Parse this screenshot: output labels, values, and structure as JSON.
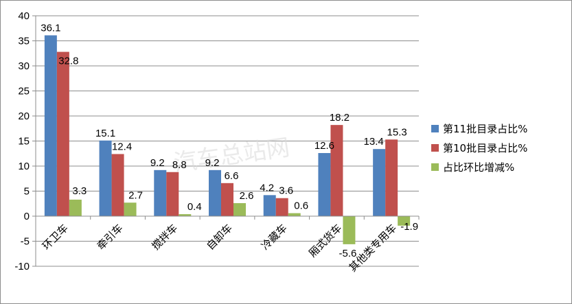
{
  "watermark": "汽车总站网",
  "chart_data": {
    "type": "bar",
    "title": "",
    "xlabel": "",
    "ylabel": "",
    "ylim": [
      -10,
      40
    ],
    "yticks": [
      -10,
      -5,
      0,
      5,
      10,
      15,
      20,
      25,
      30,
      35,
      40
    ],
    "grid": true,
    "legend_position": "right",
    "categories": [
      "环卫车",
      "牵引车",
      "搅拌车",
      "自卸车",
      "冷藏车",
      "厢式货车",
      "其他类专用车"
    ],
    "series": [
      {
        "name": "第11批目录占比%",
        "color": "#4f81bd",
        "values": [
          36.1,
          15.1,
          9.2,
          9.2,
          4.2,
          12.6,
          13.4
        ]
      },
      {
        "name": "第10批目录占比%",
        "color": "#c0504d",
        "values": [
          32.8,
          12.4,
          8.8,
          6.6,
          3.6,
          18.2,
          15.3
        ]
      },
      {
        "name": "占比环比增减%",
        "color": "#9bbb59",
        "values": [
          3.3,
          2.7,
          0.4,
          2.6,
          0.6,
          -5.6,
          -1.9
        ]
      }
    ]
  }
}
